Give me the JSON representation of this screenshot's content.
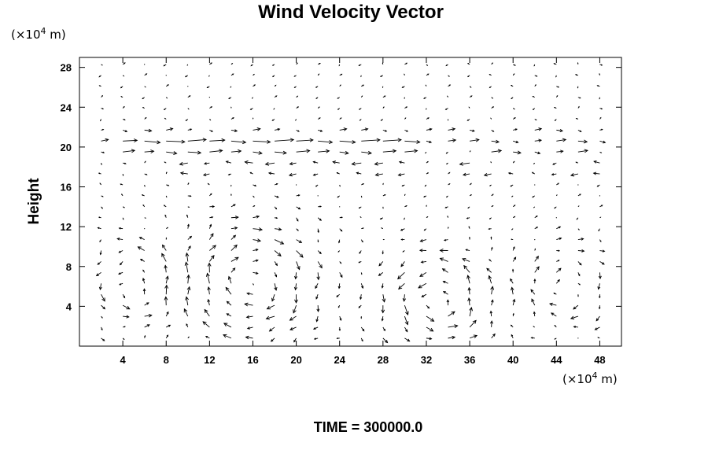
{
  "chart_data": {
    "type": "vector_field",
    "title": "Wind Velocity Vector",
    "xlabel": "",
    "ylabel": "Height",
    "x_unit": {
      "pre": "(×10",
      "exp": "4",
      "post": " m)"
    },
    "y_unit": {
      "pre": "(×10",
      "exp": "4",
      "post": " m)"
    },
    "xlim": [
      0,
      50
    ],
    "ylim": [
      0,
      29
    ],
    "xticks": [
      4,
      8,
      12,
      16,
      20,
      24,
      28,
      32,
      36,
      40,
      44,
      48
    ],
    "yticks": [
      4,
      8,
      12,
      16,
      20,
      24,
      28
    ],
    "grid": false,
    "annotation": "TIME = 300000.0",
    "field": {
      "x_start": 0,
      "x_step": 2,
      "nx": 26,
      "y_start": 0.8,
      "y_step": 1.1,
      "ny": 26,
      "jet_rows": [
        {
          "y": 20.0,
          "x_from": 4,
          "x_to": 30,
          "u": 1.6
        },
        {
          "y": 21.0,
          "x_from": 0,
          "x_to": 50,
          "u": 0.9
        },
        {
          "y": 18.0,
          "x_from": 10,
          "x_to": 30,
          "u": -1.0
        },
        {
          "y": 18.0,
          "x_from": 36,
          "x_to": 50,
          "u": -1.0
        },
        {
          "y": 19.0,
          "x_from": 38,
          "x_to": 46,
          "u": 1.1
        }
      ],
      "vortices": [
        {
          "x": 16,
          "y": 6.5,
          "r": 5.5,
          "strength": 1.8,
          "sense": -1
        },
        {
          "x": 33,
          "y": 4.5,
          "r": 4.5,
          "strength": 1.9,
          "sense": 1
        },
        {
          "x": 5,
          "y": 6,
          "r": 4.0,
          "strength": 1.3,
          "sense": 1
        },
        {
          "x": 45,
          "y": 6,
          "r": 4.0,
          "strength": 1.2,
          "sense": -1
        }
      ]
    }
  }
}
